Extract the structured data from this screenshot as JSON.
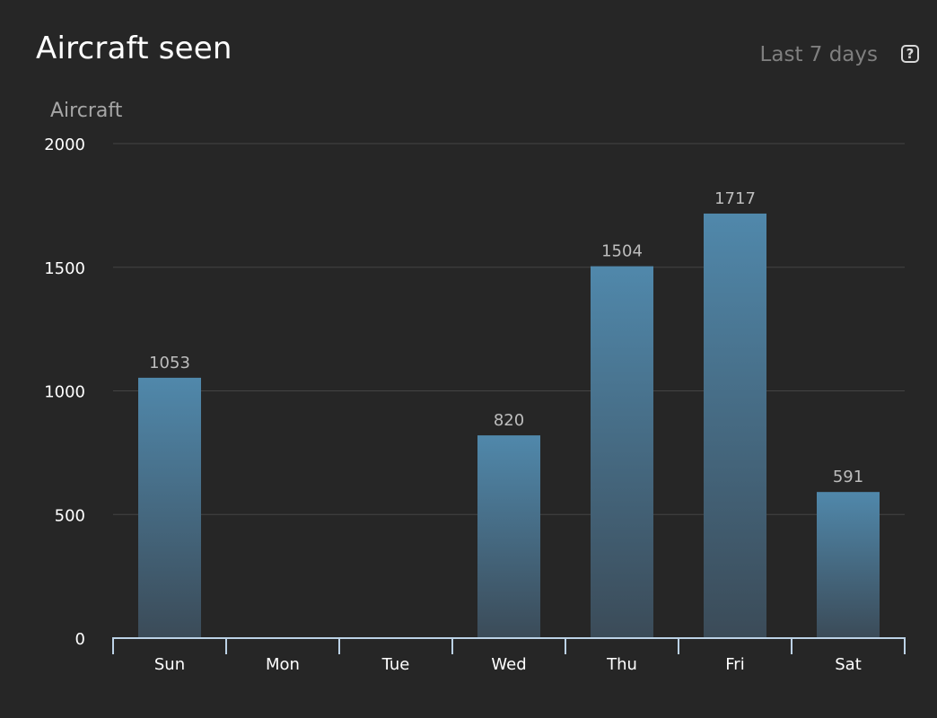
{
  "header": {
    "title": "Aircraft seen",
    "range_label": "Last 7 days",
    "help_glyph": "?",
    "help_icon": "question-square-icon"
  },
  "chart_data": {
    "type": "bar",
    "title": "Aircraft seen",
    "xlabel": "",
    "ylabel": "Aircraft",
    "categories": [
      "Sun",
      "Mon",
      "Tue",
      "Wed",
      "Thu",
      "Fri",
      "Sat"
    ],
    "values": [
      1053,
      0,
      0,
      820,
      1504,
      1717,
      591
    ],
    "data_labels": [
      "1053",
      "",
      "",
      "820",
      "1504",
      "1717",
      "591"
    ],
    "ylim": [
      0,
      2000
    ],
    "yticks": [
      0,
      500,
      1000,
      1500,
      2000
    ],
    "grid": true,
    "legend": "none",
    "colors": {
      "bar_top": "#5088ab",
      "bar_bottom": "#3b4b58",
      "grid": "#444444",
      "axis": "#bcd2e6"
    }
  }
}
